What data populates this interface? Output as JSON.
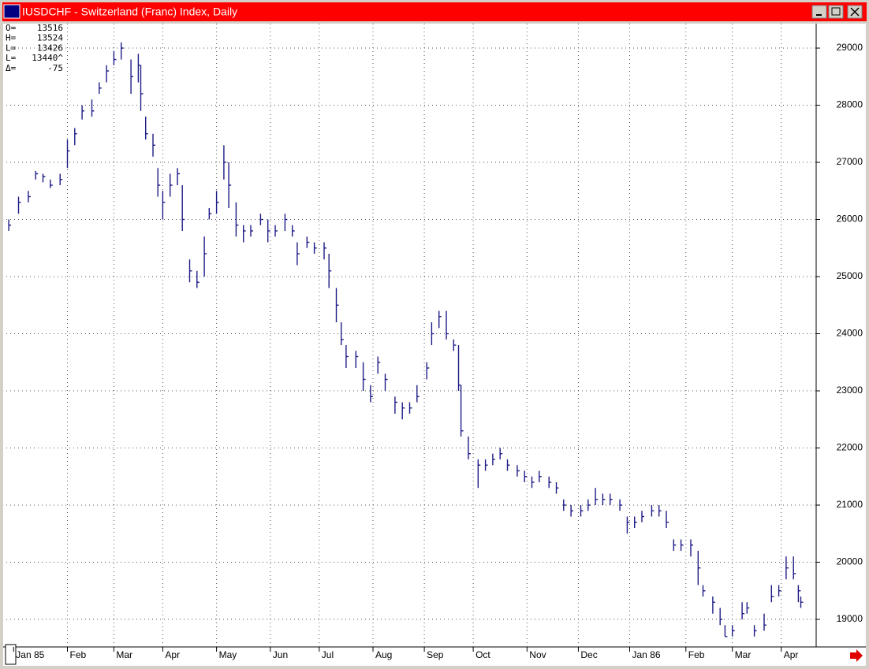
{
  "window": {
    "title": "IUSDCHF - Switzerland (Franc) Index, Daily"
  },
  "chart_data": {
    "type": "ohlc",
    "readout": [
      {
        "label": "O=",
        "value": "13516"
      },
      {
        "label": "H=",
        "value": "13524"
      },
      {
        "label": "L=",
        "value": "13426"
      },
      {
        "label": "L=",
        "value": "13440^"
      },
      {
        "label": "Δ=",
        "value": "-75"
      }
    ],
    "color": "#1c1c86",
    "grid": true,
    "xlim": [
      0,
      330
    ],
    "ylim": [
      18517,
      29428
    ],
    "yticks": [
      19000,
      20000,
      21000,
      22000,
      23000,
      24000,
      25000,
      26000,
      27000,
      28000,
      29000
    ],
    "xticks": [
      {
        "value": 3,
        "label": "Jan 85"
      },
      {
        "value": 25,
        "label": "Feb"
      },
      {
        "value": 44,
        "label": "Mar"
      },
      {
        "value": 64,
        "label": "Apr"
      },
      {
        "value": 86,
        "label": "May"
      },
      {
        "value": 108,
        "label": "Jun"
      },
      {
        "value": 128,
        "label": "Jul"
      },
      {
        "value": 150,
        "label": "Aug"
      },
      {
        "value": 171,
        "label": "Sep"
      },
      {
        "value": 191,
        "label": "Oct"
      },
      {
        "value": 213,
        "label": "Nov"
      },
      {
        "value": 234,
        "label": "Dec"
      },
      {
        "value": 255,
        "label": "Jan 86"
      },
      {
        "value": 278,
        "label": "Feb"
      },
      {
        "value": 297,
        "label": "Mar"
      },
      {
        "value": 317,
        "label": "Apr"
      }
    ],
    "x": [
      1,
      5,
      9,
      12,
      15,
      18,
      22,
      25,
      28,
      31,
      35,
      38,
      41,
      44,
      47,
      51,
      54,
      55,
      57,
      60,
      62,
      64,
      67,
      70,
      72,
      75,
      78,
      81,
      83,
      86,
      89,
      91,
      94,
      97,
      100,
      104,
      107,
      110,
      114,
      117,
      119,
      123,
      126,
      130,
      132,
      135,
      137,
      139,
      143,
      146,
      149,
      152,
      155,
      159,
      162,
      165,
      168,
      172,
      174,
      177,
      180,
      183,
      185,
      186,
      189,
      193,
      196,
      199,
      202,
      205,
      209,
      212,
      215,
      218,
      222,
      225,
      228,
      231,
      235,
      238,
      241,
      244,
      247,
      251,
      254,
      257,
      260,
      264,
      267,
      270,
      273,
      276,
      280,
      283,
      285,
      289,
      292,
      294,
      297,
      301,
      303,
      306,
      310,
      313,
      316,
      319,
      322,
      324,
      325
    ],
    "high": [
      26000,
      26400,
      26500,
      26850,
      26800,
      26700,
      26800,
      27400,
      27600,
      28000,
      28100,
      28400,
      28700,
      28950,
      29100,
      28800,
      28900,
      28700,
      27800,
      27500,
      26900,
      26500,
      26800,
      26900,
      26600,
      25300,
      25100,
      25700,
      26200,
      26500,
      27300,
      27000,
      26300,
      25900,
      25900,
      26100,
      26000,
      25900,
      26100,
      25900,
      25600,
      25700,
      25600,
      25600,
      25400,
      24800,
      24200,
      23800,
      23700,
      23500,
      23100,
      23600,
      23300,
      22900,
      22800,
      22800,
      23100,
      23500,
      24200,
      24400,
      24400,
      23900,
      23800,
      23100,
      22200,
      21800,
      21800,
      21900,
      22000,
      21800,
      21700,
      21600,
      21500,
      21600,
      21500,
      21400,
      21100,
      21000,
      21000,
      21100,
      21300,
      21200,
      21200,
      21100,
      20800,
      20800,
      20900,
      21000,
      21000,
      20900,
      20400,
      20400,
      20400,
      20200,
      19600,
      19400,
      19200,
      18900,
      18900,
      19300,
      19300,
      18900,
      19100,
      19600,
      19600,
      20100,
      20100,
      19600,
      19400
    ],
    "low": [
      25800,
      26100,
      26300,
      26700,
      26650,
      26550,
      26600,
      26900,
      27300,
      27750,
      27800,
      28200,
      28400,
      28700,
      28800,
      28200,
      28400,
      27900,
      27400,
      27100,
      26400,
      26000,
      26400,
      26600,
      25800,
      24900,
      24800,
      25000,
      26000,
      26100,
      26700,
      26200,
      25700,
      25600,
      25700,
      25900,
      25600,
      25700,
      25800,
      25700,
      25200,
      25500,
      25400,
      25300,
      24800,
      24200,
      23800,
      23400,
      23400,
      23000,
      22800,
      23300,
      23000,
      22600,
      22500,
      22600,
      22800,
      23200,
      23800,
      24100,
      23900,
      23700,
      23000,
      22200,
      21800,
      21300,
      21600,
      21700,
      21800,
      21600,
      21500,
      21400,
      21300,
      21400,
      21300,
      21200,
      20900,
      20800,
      20800,
      20900,
      21000,
      21000,
      21000,
      20900,
      20500,
      20600,
      20700,
      20800,
      20800,
      20600,
      20200,
      20200,
      20100,
      19600,
      19400,
      19100,
      18900,
      18700,
      18700,
      19000,
      19100,
      18700,
      18800,
      19300,
      19400,
      19700,
      19700,
      19300,
      19200
    ],
    "close": [
      25900,
      26300,
      26400,
      26800,
      26750,
      26600,
      26700,
      27200,
      27500,
      27900,
      27900,
      28300,
      28600,
      28800,
      29000,
      28500,
      28700,
      28200,
      27500,
      27300,
      26600,
      26300,
      26600,
      26800,
      26000,
      25100,
      24900,
      25400,
      26100,
      26300,
      27000,
      26600,
      25900,
      25800,
      25800,
      26000,
      25800,
      25800,
      26000,
      25800,
      25400,
      25600,
      25500,
      25500,
      25100,
      24500,
      23900,
      23600,
      23600,
      23200,
      22900,
      23500,
      23200,
      22800,
      22700,
      22700,
      22900,
      23400,
      24000,
      24300,
      24000,
      23800,
      23100,
      22300,
      21900,
      21700,
      21700,
      21800,
      21900,
      21700,
      21600,
      21500,
      21400,
      21500,
      21400,
      21300,
      21000,
      20900,
      20900,
      21000,
      21100,
      21100,
      21100,
      21000,
      20700,
      20700,
      20800,
      20900,
      20900,
      20700,
      20300,
      20300,
      20300,
      19900,
      19500,
      19300,
      19000,
      18700,
      18800,
      19100,
      19200,
      18800,
      18900,
      19400,
      19500,
      19900,
      19800,
      19500,
      19300
    ]
  }
}
